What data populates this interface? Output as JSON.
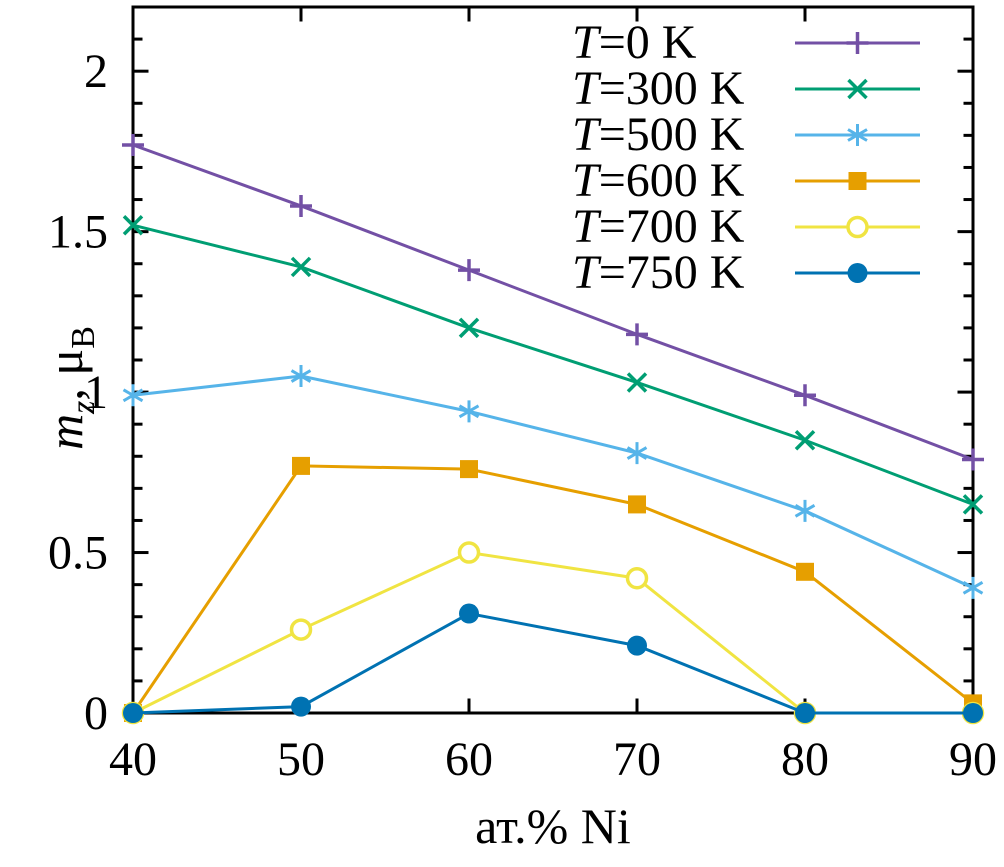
{
  "figure": {
    "background": "#ffffff",
    "axis_color": "#000000"
  },
  "chart_data": {
    "type": "line",
    "title": "",
    "xlabel": "ат.% Ni",
    "ylabel": "m_z, μ_B",
    "ylabel_parts": [
      {
        "text": "m",
        "italic": true,
        "sub": false
      },
      {
        "text": "z",
        "italic": true,
        "sub": true
      },
      {
        "text": ", ",
        "italic": false,
        "sub": false
      },
      {
        "text": "μ",
        "italic": false,
        "sub": false
      },
      {
        "text": "B",
        "italic": false,
        "sub": true
      }
    ],
    "xlim": [
      40,
      90
    ],
    "ylim": [
      0,
      2.2
    ],
    "xticks": [
      40,
      50,
      60,
      70,
      80,
      90
    ],
    "xtick_labels": [
      "40",
      "50",
      "60",
      "70",
      "80",
      "90"
    ],
    "yticks_major": [
      0,
      0.5,
      1,
      1.5,
      2
    ],
    "ytick_labels": [
      "0",
      "0.5",
      "1",
      "1.5",
      "2"
    ],
    "y_minor_step": 0.1,
    "grid": false,
    "legend_position": "top-right-inside",
    "x": [
      40,
      50,
      60,
      70,
      80,
      90
    ],
    "series": [
      {
        "name": "T=0 K",
        "color": "#7350a5",
        "marker": "plus",
        "values": [
          1.77,
          1.58,
          1.38,
          1.18,
          0.99,
          0.79
        ]
      },
      {
        "name": "T=300 K",
        "color": "#009e73",
        "marker": "x",
        "values": [
          1.52,
          1.39,
          1.2,
          1.03,
          0.85,
          0.65
        ]
      },
      {
        "name": "T=500 K",
        "color": "#56b4e9",
        "marker": "asterisk",
        "values": [
          0.99,
          1.05,
          0.94,
          0.81,
          0.63,
          0.39
        ]
      },
      {
        "name": "T=600 K",
        "color": "#e69f00",
        "marker": "filled-square",
        "values": [
          0.0,
          0.77,
          0.76,
          0.65,
          0.44,
          0.03
        ]
      },
      {
        "name": "T=700 K",
        "color": "#f0e442",
        "marker": "open-circle",
        "values": [
          0.0,
          0.26,
          0.5,
          0.42,
          0.0,
          0.0
        ]
      },
      {
        "name": "T=750 K",
        "color": "#0072b2",
        "marker": "filled-circle",
        "values": [
          0.0,
          0.02,
          0.31,
          0.21,
          0.0,
          0.0
        ]
      }
    ]
  }
}
